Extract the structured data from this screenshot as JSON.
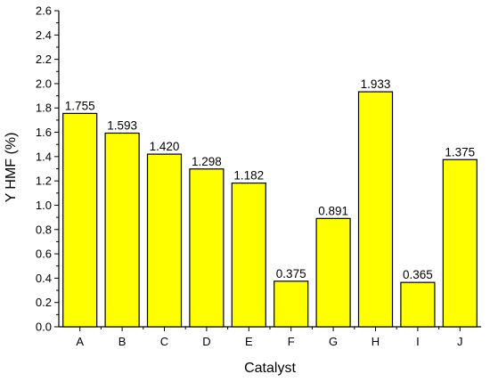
{
  "chart_data": {
    "type": "bar",
    "title": "",
    "xlabel": "Catalyst",
    "ylabel": "Y HMF (%)",
    "categories": [
      "A",
      "B",
      "C",
      "D",
      "E",
      "F",
      "G",
      "H",
      "I",
      "J"
    ],
    "values": [
      1.755,
      1.593,
      1.42,
      1.298,
      1.182,
      0.375,
      0.891,
      1.933,
      0.365,
      1.375
    ],
    "data_labels": [
      "1.755",
      "1.593",
      "1.420",
      "1.298",
      "1.182",
      "0.375",
      "0.891",
      "1.933",
      "0.365",
      "1.375"
    ],
    "ylim": [
      0,
      2.6
    ],
    "yticks": [
      "0.0",
      "0.2",
      "0.4",
      "0.6",
      "0.8",
      "1.0",
      "1.2",
      "1.4",
      "1.6",
      "1.8",
      "2.0",
      "2.2",
      "2.4",
      "2.6"
    ],
    "grid": false,
    "legend": "none",
    "bar_color": "#ffff00"
  }
}
